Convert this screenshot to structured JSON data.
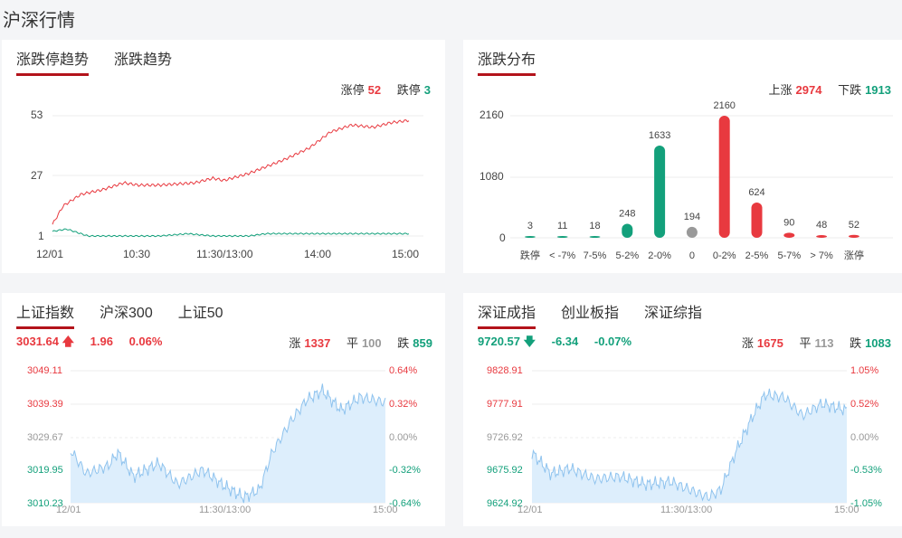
{
  "page_title": "沪深行情",
  "trend_panel": {
    "tabs": [
      "涨跌停趋势",
      "涨跌趋势"
    ],
    "limit_up_label": "涨停",
    "limit_up_count": "52",
    "limit_down_label": "跌停",
    "limit_down_count": "3",
    "y_ticks": [
      "53",
      "27",
      "1"
    ],
    "x_ticks": [
      "12/01",
      "10:30",
      "11:30/13:00",
      "14:00",
      "15:00"
    ],
    "colors": {
      "up": "#e8393f",
      "down": "#13a07b"
    }
  },
  "dist_panel": {
    "tabs": [
      "涨跌分布"
    ],
    "up_label": "上涨",
    "up_count": "2974",
    "down_label": "下跌",
    "down_count": "1913",
    "chart_data": {
      "type": "bar",
      "categories": [
        "跌停",
        "< -7%",
        "7-5%",
        "5-2%",
        "2-0%",
        "0",
        "0-2%",
        "2-5%",
        "5-7%",
        "> 7%",
        "涨停"
      ],
      "values": [
        3,
        11,
        18,
        248,
        1633,
        194,
        2160,
        624,
        90,
        48,
        52
      ],
      "value_labels": [
        "3",
        "11",
        "18",
        "248",
        "1633",
        "194",
        "2160",
        "624",
        "90",
        "48",
        "52"
      ],
      "y_ticks": [
        "2160",
        "1080",
        "0"
      ],
      "ylim": [
        0,
        2160
      ],
      "bar_colors": [
        "#13a07b",
        "#13a07b",
        "#13a07b",
        "#13a07b",
        "#13a07b",
        "#999999",
        "#e8393f",
        "#e8393f",
        "#e8393f",
        "#e8393f",
        "#e8393f"
      ]
    }
  },
  "sh_panel": {
    "tabs": [
      "上证指数",
      "沪深300",
      "上证50"
    ],
    "price": "3031.64",
    "change": "1.96",
    "pct": "0.06%",
    "up_label": "涨",
    "up_count": "1337",
    "flat_label": "平",
    "flat_count": "100",
    "down_label": "跌",
    "down_count": "859",
    "y_left": [
      "3049.11",
      "3039.39",
      "3029.67",
      "3019.95",
      "3010.23"
    ],
    "y_right": [
      "0.64%",
      "0.32%",
      "0.00%",
      "-0.32%",
      "-0.64%"
    ],
    "x_ticks": [
      "12/01",
      "11:30/13:00",
      "15:00"
    ]
  },
  "sz_panel": {
    "tabs": [
      "深证成指",
      "创业板指",
      "深证综指"
    ],
    "price": "9720.57",
    "change": "-6.34",
    "pct": "-0.07%",
    "up_label": "涨",
    "up_count": "1675",
    "flat_label": "平",
    "flat_count": "113",
    "down_label": "跌",
    "down_count": "1083",
    "y_left": [
      "9828.91",
      "9777.91",
      "9726.92",
      "9675.92",
      "9624.92"
    ],
    "y_right": [
      "1.05%",
      "0.52%",
      "0.00%",
      "-0.53%",
      "-1.05%"
    ],
    "x_ticks": [
      "12/01",
      "11:30/13:00",
      "15:00"
    ]
  }
}
